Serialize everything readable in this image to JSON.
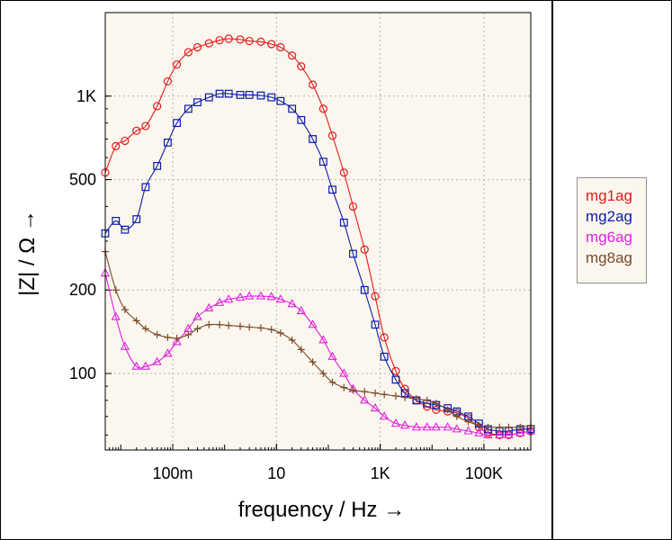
{
  "chart_data": {
    "type": "line",
    "xscale": "log",
    "yscale": "log",
    "xlabel": "frequency / Hz →",
    "ylabel": "|Z| / Ω →",
    "xlim": [
      0.005,
      800000
    ],
    "ylim": [
      53,
      2000
    ],
    "grid": true,
    "legend_position": "right",
    "xticks": [
      {
        "value": 0.1,
        "label": "100m"
      },
      {
        "value": 10,
        "label": "10"
      },
      {
        "value": 1000,
        "label": "1K"
      },
      {
        "value": 100000,
        "label": "100K"
      }
    ],
    "yticks": [
      {
        "value": 100,
        "label": "100"
      },
      {
        "value": 200,
        "label": "200"
      },
      {
        "value": 500,
        "label": "500"
      },
      {
        "value": 1000,
        "label": "1K"
      }
    ],
    "series": [
      {
        "name": "mg1ag",
        "color": "#e31a1c",
        "marker": "circle",
        "points": [
          [
            0.005,
            530
          ],
          [
            0.008,
            660
          ],
          [
            0.012,
            690
          ],
          [
            0.02,
            750
          ],
          [
            0.03,
            780
          ],
          [
            0.05,
            920
          ],
          [
            0.08,
            1130
          ],
          [
            0.12,
            1300
          ],
          [
            0.2,
            1440
          ],
          [
            0.3,
            1500
          ],
          [
            0.5,
            1550
          ],
          [
            0.8,
            1590
          ],
          [
            1.2,
            1610
          ],
          [
            2,
            1600
          ],
          [
            3,
            1580
          ],
          [
            5,
            1570
          ],
          [
            8,
            1540
          ],
          [
            12,
            1500
          ],
          [
            20,
            1400
          ],
          [
            30,
            1280
          ],
          [
            50,
            1100
          ],
          [
            80,
            900
          ],
          [
            120,
            720
          ],
          [
            200,
            530
          ],
          [
            300,
            400
          ],
          [
            500,
            280
          ],
          [
            800,
            190
          ],
          [
            1200,
            135
          ],
          [
            2000,
            102
          ],
          [
            3000,
            88
          ],
          [
            5000,
            80
          ],
          [
            8000,
            76
          ],
          [
            12000,
            74
          ],
          [
            20000,
            73
          ],
          [
            30000,
            72
          ],
          [
            50000,
            69
          ],
          [
            80000,
            64
          ],
          [
            120000,
            61
          ],
          [
            200000,
            60
          ],
          [
            300000,
            60
          ],
          [
            500000,
            61
          ],
          [
            800000,
            62
          ]
        ]
      },
      {
        "name": "mg2ag",
        "color": "#0a1aa8",
        "marker": "square",
        "points": [
          [
            0.005,
            320
          ],
          [
            0.008,
            355
          ],
          [
            0.012,
            330
          ],
          [
            0.02,
            360
          ],
          [
            0.03,
            470
          ],
          [
            0.05,
            560
          ],
          [
            0.08,
            680
          ],
          [
            0.12,
            800
          ],
          [
            0.2,
            900
          ],
          [
            0.3,
            950
          ],
          [
            0.5,
            990
          ],
          [
            0.8,
            1020
          ],
          [
            1.2,
            1020
          ],
          [
            2,
            1010
          ],
          [
            3,
            1010
          ],
          [
            5,
            1005
          ],
          [
            8,
            990
          ],
          [
            12,
            960
          ],
          [
            20,
            900
          ],
          [
            30,
            820
          ],
          [
            50,
            700
          ],
          [
            80,
            580
          ],
          [
            120,
            460
          ],
          [
            200,
            350
          ],
          [
            300,
            270
          ],
          [
            500,
            200
          ],
          [
            800,
            150
          ],
          [
            1200,
            115
          ],
          [
            2000,
            95
          ],
          [
            3000,
            85
          ],
          [
            5000,
            80
          ],
          [
            8000,
            78
          ],
          [
            12000,
            77
          ],
          [
            20000,
            75
          ],
          [
            30000,
            73
          ],
          [
            50000,
            70
          ],
          [
            80000,
            66
          ],
          [
            120000,
            63
          ],
          [
            200000,
            62
          ],
          [
            300000,
            62
          ],
          [
            500000,
            63
          ],
          [
            800000,
            63
          ]
        ]
      },
      {
        "name": "mg6ag",
        "color": "#e020e0",
        "marker": "triangle",
        "points": [
          [
            0.005,
            230
          ],
          [
            0.008,
            160
          ],
          [
            0.012,
            125
          ],
          [
            0.02,
            106
          ],
          [
            0.03,
            106
          ],
          [
            0.05,
            110
          ],
          [
            0.08,
            118
          ],
          [
            0.12,
            130
          ],
          [
            0.2,
            145
          ],
          [
            0.3,
            160
          ],
          [
            0.5,
            172
          ],
          [
            0.8,
            180
          ],
          [
            1.2,
            185
          ],
          [
            2,
            188
          ],
          [
            3,
            190
          ],
          [
            5,
            190
          ],
          [
            8,
            189
          ],
          [
            12,
            185
          ],
          [
            20,
            178
          ],
          [
            30,
            168
          ],
          [
            50,
            150
          ],
          [
            80,
            132
          ],
          [
            120,
            115
          ],
          [
            200,
            100
          ],
          [
            300,
            88
          ],
          [
            500,
            80
          ],
          [
            800,
            75
          ],
          [
            1200,
            70
          ],
          [
            2000,
            66
          ],
          [
            3000,
            65
          ],
          [
            5000,
            64
          ],
          [
            8000,
            64
          ],
          [
            12000,
            64
          ],
          [
            20000,
            64
          ],
          [
            30000,
            63
          ],
          [
            50000,
            62
          ],
          [
            80000,
            61
          ],
          [
            120000,
            60
          ],
          [
            200000,
            60
          ],
          [
            300000,
            60
          ],
          [
            500000,
            61
          ],
          [
            800000,
            62
          ]
        ]
      },
      {
        "name": "mg8ag",
        "color": "#7a4a2a",
        "marker": "plus",
        "points": [
          [
            0.005,
            275
          ],
          [
            0.008,
            200
          ],
          [
            0.012,
            170
          ],
          [
            0.02,
            155
          ],
          [
            0.03,
            145
          ],
          [
            0.05,
            138
          ],
          [
            0.08,
            135
          ],
          [
            0.12,
            134
          ],
          [
            0.2,
            138
          ],
          [
            0.3,
            145
          ],
          [
            0.5,
            150
          ],
          [
            0.8,
            150
          ],
          [
            1.2,
            149
          ],
          [
            2,
            148
          ],
          [
            3,
            147
          ],
          [
            5,
            146
          ],
          [
            8,
            144
          ],
          [
            12,
            140
          ],
          [
            20,
            132
          ],
          [
            30,
            122
          ],
          [
            50,
            110
          ],
          [
            80,
            100
          ],
          [
            120,
            93
          ],
          [
            200,
            89
          ],
          [
            300,
            87
          ],
          [
            500,
            86
          ],
          [
            800,
            85
          ],
          [
            1200,
            84
          ],
          [
            2000,
            83
          ],
          [
            3000,
            82
          ],
          [
            5000,
            81
          ],
          [
            8000,
            80
          ],
          [
            12000,
            78
          ],
          [
            20000,
            74
          ],
          [
            30000,
            70
          ],
          [
            50000,
            67
          ],
          [
            80000,
            65
          ],
          [
            120000,
            64
          ],
          [
            200000,
            64
          ],
          [
            300000,
            64
          ],
          [
            500000,
            64
          ],
          [
            800000,
            65
          ]
        ]
      }
    ]
  }
}
